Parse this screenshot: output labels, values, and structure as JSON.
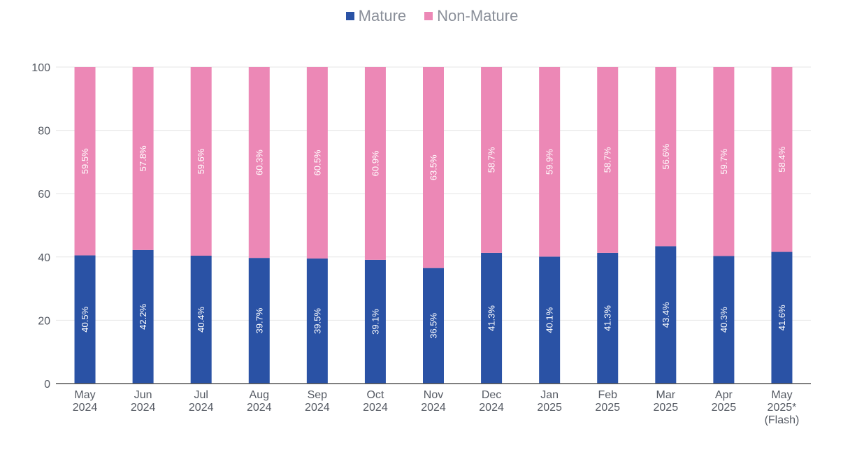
{
  "chart_data": {
    "type": "bar",
    "stacked": true,
    "categories": [
      [
        "May",
        "2024"
      ],
      [
        "Jun",
        "2024"
      ],
      [
        "Jul",
        "2024"
      ],
      [
        "Aug",
        "2024"
      ],
      [
        "Sep",
        "2024"
      ],
      [
        "Oct",
        "2024"
      ],
      [
        "Nov",
        "2024"
      ],
      [
        "Dec",
        "2024"
      ],
      [
        "Jan",
        "2025"
      ],
      [
        "Feb",
        "2025"
      ],
      [
        "Mar",
        "2025"
      ],
      [
        "Apr",
        "2025"
      ],
      [
        "May",
        "2025*",
        "(Flash)"
      ]
    ],
    "series": [
      {
        "name": "Mature",
        "color": "#2a52a5",
        "values": [
          40.5,
          42.2,
          40.4,
          39.7,
          39.5,
          39.1,
          36.5,
          41.3,
          40.1,
          41.3,
          43.4,
          40.3,
          41.6
        ],
        "labels": [
          "40.5%",
          "42.2%",
          "40.4%",
          "39.7%",
          "39.5%",
          "39.1%",
          "36.5%",
          "41.3%",
          "40.1%",
          "41.3%",
          "43.4%",
          "40.3%",
          "41.6%"
        ]
      },
      {
        "name": "Non-Mature",
        "color": "#ec88b6",
        "values": [
          59.5,
          57.8,
          59.6,
          60.3,
          60.5,
          60.9,
          63.5,
          58.7,
          59.9,
          58.7,
          56.6,
          59.7,
          58.4
        ],
        "labels": [
          "59.5%",
          "57.8%",
          "59.6%",
          "60.3%",
          "60.5%",
          "60.9%",
          "63.5%",
          "58.7%",
          "59.9%",
          "58.7%",
          "56.6%",
          "59.7%",
          "58.4%"
        ]
      }
    ],
    "ylim": [
      0,
      100
    ],
    "yticks": [
      "0",
      "20",
      "40",
      "60",
      "80",
      "100"
    ],
    "grid": true,
    "legend_position": "top-center"
  }
}
